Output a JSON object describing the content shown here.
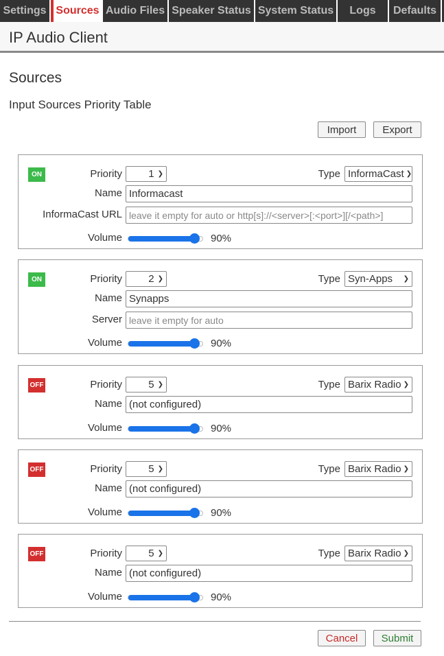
{
  "tabs": [
    {
      "label": "Settings",
      "w": 74
    },
    {
      "label": "Sources",
      "w": 76,
      "active": true
    },
    {
      "label": "Audio Files",
      "w": 96
    },
    {
      "label": "Speaker Status",
      "w": 126
    },
    {
      "label": "System Status",
      "w": 120
    },
    {
      "label": "Logs",
      "w": 75
    },
    {
      "label": "Defaults",
      "w": 77
    }
  ],
  "header": {
    "title": "IP Audio Client"
  },
  "page": {
    "heading": "Sources",
    "subheading": "Input Sources Priority Table",
    "import_label": "Import",
    "export_label": "Export",
    "cancel_label": "Cancel",
    "submit_label": "Submit"
  },
  "labels": {
    "priority": "Priority",
    "type": "Type",
    "name": "Name",
    "volume": "Volume"
  },
  "colors": {
    "on": "#3cba4a",
    "off": "#d32f2f",
    "accent": "#1a73e8"
  },
  "sources": [
    {
      "status": "ON",
      "priority": "1",
      "type": "InformaCast",
      "name": "Informacast",
      "extra_label": "InformaCast URL",
      "extra_placeholder": "leave it empty for auto or http[s]://<server>[:<port>][/<path>]",
      "volume": 90,
      "volume_text": "90%"
    },
    {
      "status": "ON",
      "priority": "2",
      "type": "Syn-Apps",
      "name": "Synapps",
      "extra_label": "Server",
      "extra_placeholder": "leave it empty for auto",
      "volume": 90,
      "volume_text": "90%"
    },
    {
      "status": "OFF",
      "priority": "5",
      "type": "Barix Radio",
      "name": "(not configured)",
      "volume": 90,
      "volume_text": "90%"
    },
    {
      "status": "OFF",
      "priority": "5",
      "type": "Barix Radio",
      "name": "(not configured)",
      "volume": 90,
      "volume_text": "90%"
    },
    {
      "status": "OFF",
      "priority": "5",
      "type": "Barix Radio",
      "name": "(not configured)",
      "volume": 90,
      "volume_text": "90%"
    }
  ]
}
